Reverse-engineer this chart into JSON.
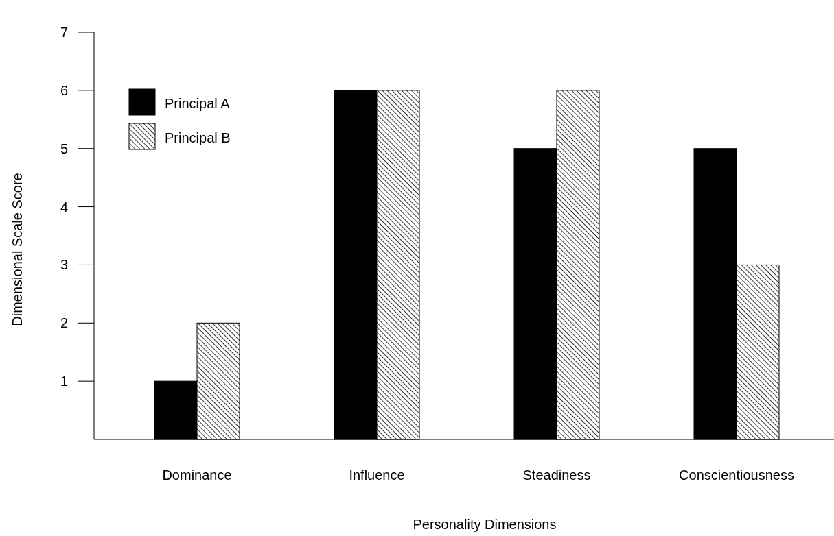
{
  "chart_data": {
    "type": "bar",
    "xlabel": "Personality Dimensions",
    "ylabel": "Dimensional Scale Score",
    "categories": [
      "Dominance",
      "Influence",
      "Steadiness",
      "Conscientiousness"
    ],
    "series": [
      {
        "name": "Principal A",
        "color": "#000000",
        "values": [
          1,
          6,
          5,
          5
        ]
      },
      {
        "name": "Principal B",
        "color": "#000000",
        "values": [
          2,
          6,
          6,
          3
        ]
      }
    ],
    "ylim": [
      0,
      7
    ],
    "yticks": [
      1,
      2,
      3,
      4,
      5,
      6,
      7
    ],
    "grid": false,
    "legend": "top left"
  }
}
